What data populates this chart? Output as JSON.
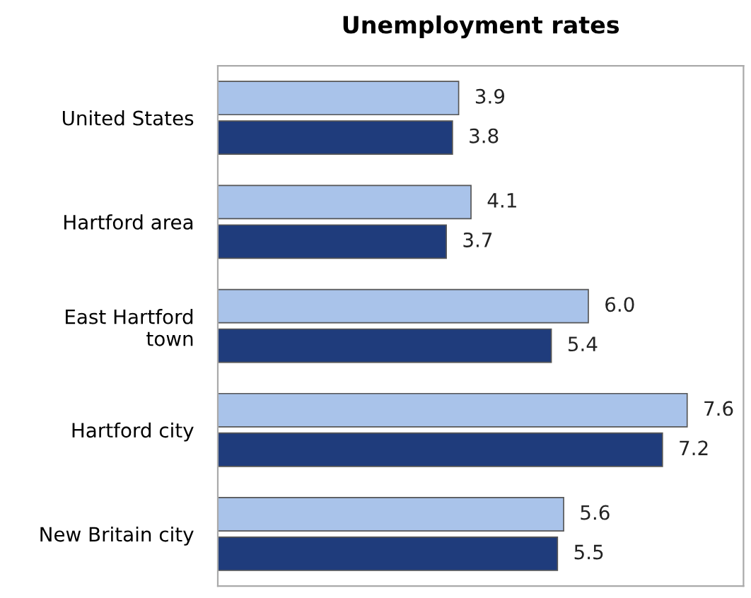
{
  "chart_data": {
    "type": "bar",
    "orientation": "horizontal",
    "title": "Unemployment rates",
    "categories": [
      "United States",
      "Hartford area",
      "East Hartford\ntown",
      "Hartford city",
      "New Britain city"
    ],
    "series": [
      {
        "color": "#a9c3ea",
        "values": [
          3.9,
          4.1,
          6.0,
          7.6,
          5.6
        ],
        "value_labels": [
          "3.9",
          "4.1",
          "6.0",
          "7.6",
          "5.6"
        ]
      },
      {
        "color": "#1f3c7c",
        "values": [
          3.8,
          3.7,
          5.4,
          7.2,
          5.5
        ],
        "value_labels": [
          "3.8",
          "3.7",
          "5.4",
          "7.2",
          "5.5"
        ]
      }
    ],
    "grid": false,
    "legend": false
  }
}
